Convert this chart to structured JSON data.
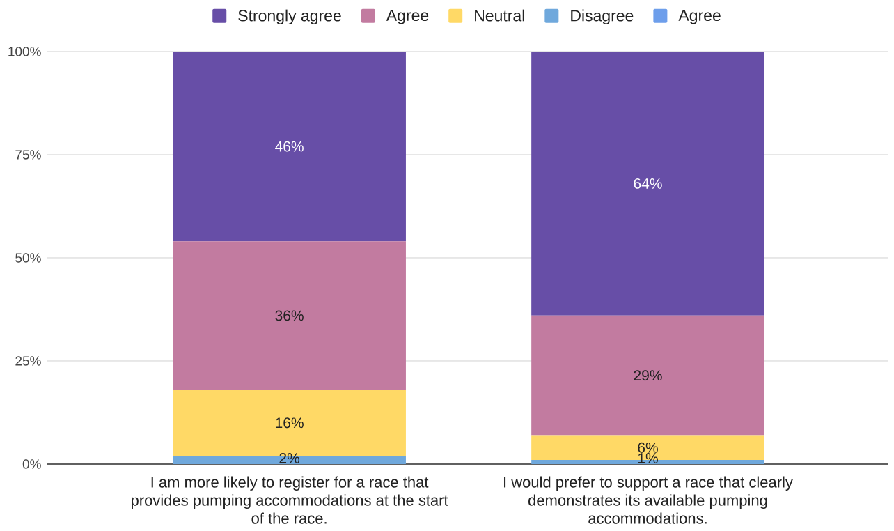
{
  "chart_data": {
    "type": "bar",
    "stacked": true,
    "categories": [
      "I am more likely to register for a race that provides pumping accommodations at the start of the race.",
      "I would prefer to support a race that clearly demonstrates its available pumping accommodations."
    ],
    "series": [
      {
        "name": "Agree",
        "color": "#6d9eeb",
        "values": [
          0,
          0
        ]
      },
      {
        "name": "Disagree",
        "color": "#6fa8dc",
        "values": [
          2,
          1
        ],
        "value_labels": [
          "2%",
          "1%"
        ]
      },
      {
        "name": "Neutral",
        "color": "#ffd966",
        "values": [
          16,
          6
        ],
        "value_labels": [
          "16%",
          "6%"
        ]
      },
      {
        "name": "Agree",
        "color": "#c27ba0",
        "values": [
          36,
          29
        ],
        "value_labels": [
          "36%",
          "29%"
        ]
      },
      {
        "name": "Strongly agree",
        "color": "#674ea7",
        "values": [
          46,
          64
        ],
        "value_labels": [
          "46%",
          "64%"
        ]
      }
    ],
    "ylim": [
      0,
      100
    ],
    "yticks": [
      {
        "value": 0,
        "label": "0%"
      },
      {
        "value": 25,
        "label": "25%"
      },
      {
        "value": 50,
        "label": "50%"
      },
      {
        "value": 75,
        "label": "75%"
      },
      {
        "value": 100,
        "label": "100%"
      }
    ],
    "grid": "y",
    "legend": "top"
  }
}
